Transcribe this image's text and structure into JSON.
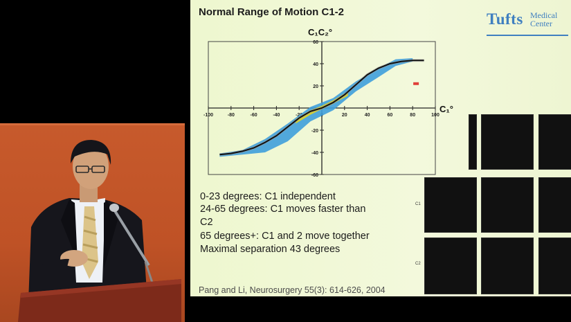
{
  "slide": {
    "title": "Normal Range of Motion  C1-2",
    "logo": {
      "word": "Tufts",
      "line1": "Medical",
      "line2": "Center"
    },
    "bullets": [
      "0-23 degrees: C1 independent",
      "24-65 degrees: C1 moves faster than",
      "C2",
      "65 degrees+: C1 and 2 move together",
      "Maximal separation 43 degrees"
    ],
    "citation": "Pang and Li, Neurosurgery 55(3): 614-626, 2004",
    "ct_labels": [
      "C1",
      "C2"
    ]
  },
  "chart_data": {
    "type": "line",
    "title": "C₁C₂°",
    "xlabel": "C₁°",
    "ylabel": "",
    "xlim": [
      -100,
      100
    ],
    "ylim": [
      -60,
      60
    ],
    "x_ticks": [
      -100,
      -80,
      -60,
      -40,
      -20,
      0,
      20,
      40,
      60,
      80,
      100
    ],
    "y_ticks": [
      60,
      40,
      20,
      -20,
      -40,
      -60
    ],
    "grid": false,
    "series": [
      {
        "values_x": [
          -90,
          -80,
          -70,
          -60,
          -50,
          -40,
          -30,
          -20,
          -10,
          0,
          10,
          20,
          30,
          40,
          50,
          60,
          70,
          80,
          90
        ],
        "values_y": [
          -42,
          -41,
          -39,
          -36,
          -31,
          -25,
          -17,
          -9,
          -3,
          0,
          5,
          12,
          21,
          30,
          36,
          40,
          42,
          43,
          43
        ],
        "color": "#111111"
      }
    ],
    "bands": [
      {
        "color": "#3f9fdc",
        "x": [
          -90,
          -70,
          -50,
          -30,
          -10,
          10,
          30,
          50,
          65,
          80
        ],
        "low": [
          -44,
          -42,
          -40,
          -30,
          -12,
          -2,
          15,
          28,
          38,
          42
        ],
        "high": [
          -41,
          -38,
          -28,
          -14,
          1,
          9,
          24,
          36,
          44,
          45
        ]
      },
      {
        "color": "#e4d41e",
        "x": [
          -23,
          -10,
          0,
          10,
          23
        ],
        "low": [
          -14,
          -6,
          -1,
          4,
          11
        ],
        "high": [
          -10,
          -2,
          2,
          7,
          15
        ]
      }
    ],
    "marker": {
      "x": 83,
      "y": 22,
      "color": "#e0403a"
    }
  }
}
